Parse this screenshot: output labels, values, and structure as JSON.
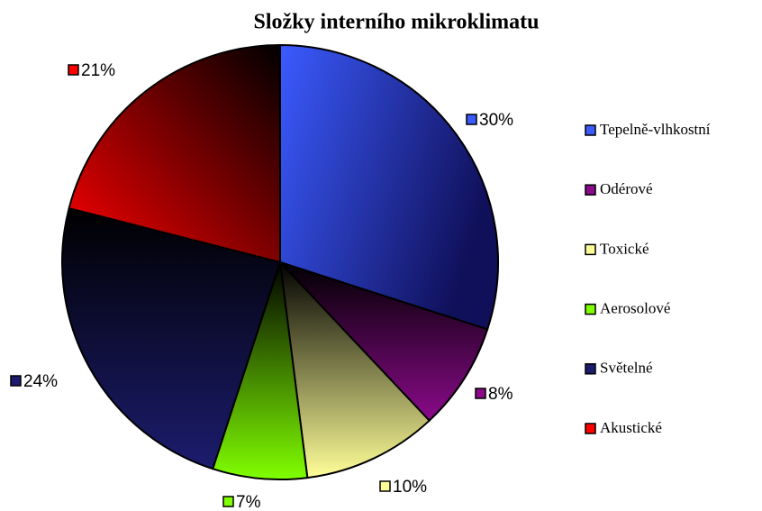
{
  "chart_data": {
    "type": "pie",
    "title": "Složky interního mikroklimatu",
    "categories": [
      "Tepelně-vlhkostní",
      "Odérové",
      "Toxické",
      "Aerosolové",
      "Světelné",
      "Akustické"
    ],
    "values": [
      30,
      8,
      10,
      7,
      24,
      21
    ],
    "value_labels": [
      "30%",
      "8%",
      "10%",
      "7%",
      "24%",
      "21%"
    ],
    "colors": [
      "#3b5bff",
      "#8a0a8a",
      "#ffff99",
      "#80ff00",
      "#1c1c6e",
      "#ff0000"
    ],
    "legend": "right"
  }
}
